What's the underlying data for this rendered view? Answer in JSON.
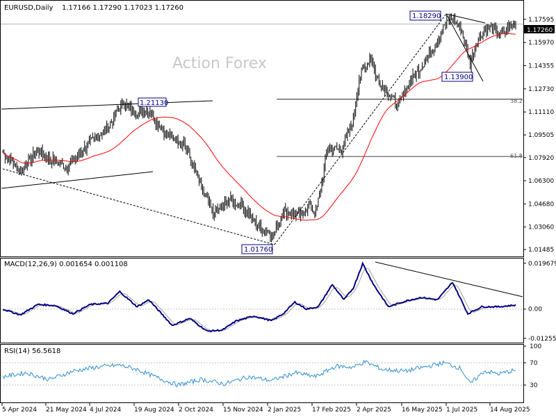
{
  "header": {
    "symbol": "EURUSD,Daily",
    "ohlc": "1.17166 1.17290 1.17023 1.17260"
  },
  "watermark": "Action Forex",
  "colors": {
    "candles": "#000000",
    "ma": "#ff0000",
    "macd": "#000080",
    "macd_signal": "#a0a0a0",
    "rsi": "#3090d0",
    "trendline": "#000000",
    "grid": "#c0c0c0",
    "price_box": "#000000",
    "watermark": "#c8c8c8"
  },
  "chart_data": [
    {
      "type": "candlestick",
      "title": "EURUSD,Daily",
      "ylim": [
        1.0115,
        1.1875
      ],
      "price_ticks": [
        "1.17595",
        "1.15970",
        "1.14355",
        "1.12730",
        "1.11110",
        "1.09505",
        "1.07920",
        "1.06300",
        "1.04680",
        "1.03060",
        "1.01485"
      ],
      "price_tick_values": [
        1.17595,
        1.1597,
        1.14355,
        1.1273,
        1.1111,
        1.09505,
        1.0792,
        1.063,
        1.0468,
        1.0306,
        1.01485
      ],
      "current_price": "1.17260",
      "x_tick_labels": [
        "5 Apr 2024",
        "21 May 2024",
        "4 Jul 2024",
        "19 Aug 2024",
        "2 Oct 2024",
        "15 Nov 2024",
        "2 Jan 2025",
        "17 Feb 2025",
        "2 Apr 2025",
        "16 May 2025",
        "1 Jul 2025",
        "14 Aug 2025"
      ],
      "anchors": [
        {
          "day": 0,
          "close": 1.083
        },
        {
          "day": 15,
          "close": 1.07
        },
        {
          "day": 30,
          "close": 1.084
        },
        {
          "day": 40,
          "close": 1.078
        },
        {
          "day": 55,
          "close": 1.073
        },
        {
          "day": 75,
          "close": 1.09
        },
        {
          "day": 90,
          "close": 1.1
        },
        {
          "day": 103,
          "close": 1.118
        },
        {
          "day": 115,
          "close": 1.11
        },
        {
          "day": 125,
          "close": 1.112
        },
        {
          "day": 140,
          "close": 1.095
        },
        {
          "day": 155,
          "close": 1.09
        },
        {
          "day": 170,
          "close": 1.058
        },
        {
          "day": 180,
          "close": 1.04
        },
        {
          "day": 195,
          "close": 1.05
        },
        {
          "day": 205,
          "close": 1.045
        },
        {
          "day": 220,
          "close": 1.03
        },
        {
          "day": 232,
          "close": 1.025
        },
        {
          "day": 240,
          "close": 1.042
        },
        {
          "day": 255,
          "close": 1.038
        },
        {
          "day": 262,
          "close": 1.046
        },
        {
          "day": 268,
          "close": 1.04
        },
        {
          "day": 278,
          "close": 1.085
        },
        {
          "day": 290,
          "close": 1.085
        },
        {
          "day": 300,
          "close": 1.105
        },
        {
          "day": 305,
          "close": 1.135
        },
        {
          "day": 315,
          "close": 1.15
        },
        {
          "day": 320,
          "close": 1.135
        },
        {
          "day": 330,
          "close": 1.125
        },
        {
          "day": 338,
          "close": 1.115
        },
        {
          "day": 348,
          "close": 1.132
        },
        {
          "day": 360,
          "close": 1.145
        },
        {
          "day": 370,
          "close": 1.158
        },
        {
          "day": 378,
          "close": 1.172
        },
        {
          "day": 385,
          "close": 1.176
        },
        {
          "day": 392,
          "close": 1.17
        },
        {
          "day": 400,
          "close": 1.145
        },
        {
          "day": 406,
          "close": 1.162
        },
        {
          "day": 412,
          "close": 1.168
        },
        {
          "day": 418,
          "close": 1.17
        },
        {
          "day": 425,
          "close": 1.165
        },
        {
          "day": 432,
          "close": 1.169
        },
        {
          "day": 438,
          "close": 1.1726
        }
      ],
      "series": [
        {
          "name": "",
          "kind": "moving-average"
        }
      ],
      "annotations": [
        {
          "label": "1.21130",
          "note": "boxed level"
        },
        {
          "label": "1.01760",
          "note": "boxed low"
        },
        {
          "label": "1.18290",
          "note": "boxed high"
        },
        {
          "label": "1.13900",
          "note": "boxed low"
        },
        {
          "label": "38.2",
          "value": 1.12
        },
        {
          "label": "61.8",
          "value": 1.08
        }
      ]
    },
    {
      "type": "line",
      "title": "MACD(12,26,9) 0.001654 0.001108",
      "ylim": [
        -0.0135,
        0.0205
      ],
      "y_ticks": [
        "0.019679",
        "0.00",
        "-0.012552"
      ],
      "y_tick_values": [
        0.019679,
        0.0,
        -0.012552
      ],
      "series": [
        {
          "name": "",
          "kind": "macd",
          "anchors": [
            {
              "day": 0,
              "v": 0.0
            },
            {
              "day": 15,
              "v": -0.0025
            },
            {
              "day": 30,
              "v": 0.002
            },
            {
              "day": 45,
              "v": 0.0015
            },
            {
              "day": 60,
              "v": -0.002
            },
            {
              "day": 75,
              "v": 0.002
            },
            {
              "day": 90,
              "v": 0.0025
            },
            {
              "day": 100,
              "v": 0.0075
            },
            {
              "day": 115,
              "v": 0.001
            },
            {
              "day": 125,
              "v": 0.004
            },
            {
              "day": 145,
              "v": -0.007
            },
            {
              "day": 160,
              "v": -0.004
            },
            {
              "day": 175,
              "v": -0.0095
            },
            {
              "day": 188,
              "v": -0.009
            },
            {
              "day": 200,
              "v": -0.005
            },
            {
              "day": 215,
              "v": -0.003
            },
            {
              "day": 230,
              "v": -0.005
            },
            {
              "day": 240,
              "v": -0.002
            },
            {
              "day": 250,
              "v": 0.003
            },
            {
              "day": 260,
              "v": 0.0
            },
            {
              "day": 270,
              "v": 0.001
            },
            {
              "day": 282,
              "v": 0.0105
            },
            {
              "day": 292,
              "v": 0.004
            },
            {
              "day": 300,
              "v": 0.009
            },
            {
              "day": 308,
              "v": 0.0195
            },
            {
              "day": 318,
              "v": 0.01
            },
            {
              "day": 330,
              "v": 0.001
            },
            {
              "day": 345,
              "v": 0.0035
            },
            {
              "day": 358,
              "v": 0.005
            },
            {
              "day": 372,
              "v": 0.004
            },
            {
              "day": 385,
              "v": 0.0115
            },
            {
              "day": 398,
              "v": -0.002
            },
            {
              "day": 410,
              "v": 0.001
            },
            {
              "day": 425,
              "v": 0.001
            },
            {
              "day": 438,
              "v": 0.0017
            }
          ]
        },
        {
          "name": "",
          "kind": "signal",
          "lag": 6
        }
      ]
    },
    {
      "type": "line",
      "title": "RSI(14) 56.5618",
      "ylim": [
        0,
        100
      ],
      "y_ticks": [
        "100",
        "70",
        "30",
        "0"
      ],
      "y_tick_values": [
        100,
        70,
        30,
        0
      ],
      "series": [
        {
          "name": "",
          "kind": "rsi",
          "anchors": [
            {
              "day": 0,
              "v": 45
            },
            {
              "day": 20,
              "v": 52
            },
            {
              "day": 40,
              "v": 40
            },
            {
              "day": 60,
              "v": 55
            },
            {
              "day": 80,
              "v": 62
            },
            {
              "day": 100,
              "v": 66
            },
            {
              "day": 115,
              "v": 58
            },
            {
              "day": 130,
              "v": 45
            },
            {
              "day": 150,
              "v": 30
            },
            {
              "day": 170,
              "v": 40
            },
            {
              "day": 190,
              "v": 32
            },
            {
              "day": 210,
              "v": 45
            },
            {
              "day": 230,
              "v": 38
            },
            {
              "day": 250,
              "v": 52
            },
            {
              "day": 268,
              "v": 45
            },
            {
              "day": 285,
              "v": 64
            },
            {
              "day": 300,
              "v": 62
            },
            {
              "day": 310,
              "v": 72
            },
            {
              "day": 325,
              "v": 58
            },
            {
              "day": 345,
              "v": 55
            },
            {
              "day": 360,
              "v": 62
            },
            {
              "day": 378,
              "v": 70
            },
            {
              "day": 392,
              "v": 60
            },
            {
              "day": 400,
              "v": 32
            },
            {
              "day": 412,
              "v": 55
            },
            {
              "day": 425,
              "v": 50
            },
            {
              "day": 438,
              "v": 56.56
            }
          ]
        }
      ]
    }
  ]
}
